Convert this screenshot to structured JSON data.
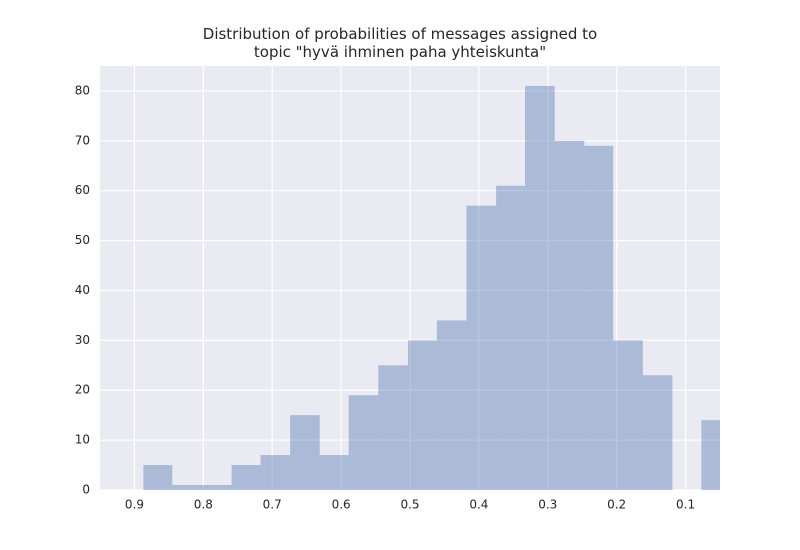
{
  "chart_data": {
    "type": "histogram",
    "title": "Distribution of probabilities of messages assigned to\ntopic \"hyvä ihminen paha yhteiskunta\"",
    "bins": [
      0.034,
      0.077,
      0.119,
      0.162,
      0.205,
      0.247,
      0.29,
      0.333,
      0.375,
      0.418,
      0.461,
      0.503,
      0.546,
      0.589,
      0.631,
      0.674,
      0.717,
      0.759,
      0.802,
      0.845,
      0.887
    ],
    "values": [
      14,
      0,
      23,
      30,
      69,
      70,
      81,
      61,
      57,
      34,
      30,
      25,
      19,
      7,
      15,
      7,
      5,
      1,
      1,
      5
    ],
    "color": "#4c72b0",
    "opacity": 0.4,
    "xlim": [
      0.95,
      0.05
    ],
    "xticks": [
      0.9,
      0.8,
      0.7,
      0.6,
      0.5,
      0.4,
      0.3,
      0.2,
      0.1
    ],
    "ylim": [
      0,
      85
    ],
    "yticks": [
      0,
      10,
      20,
      30,
      40,
      50,
      60,
      70,
      80
    ],
    "grid": true,
    "background": "#eaeaf2"
  }
}
